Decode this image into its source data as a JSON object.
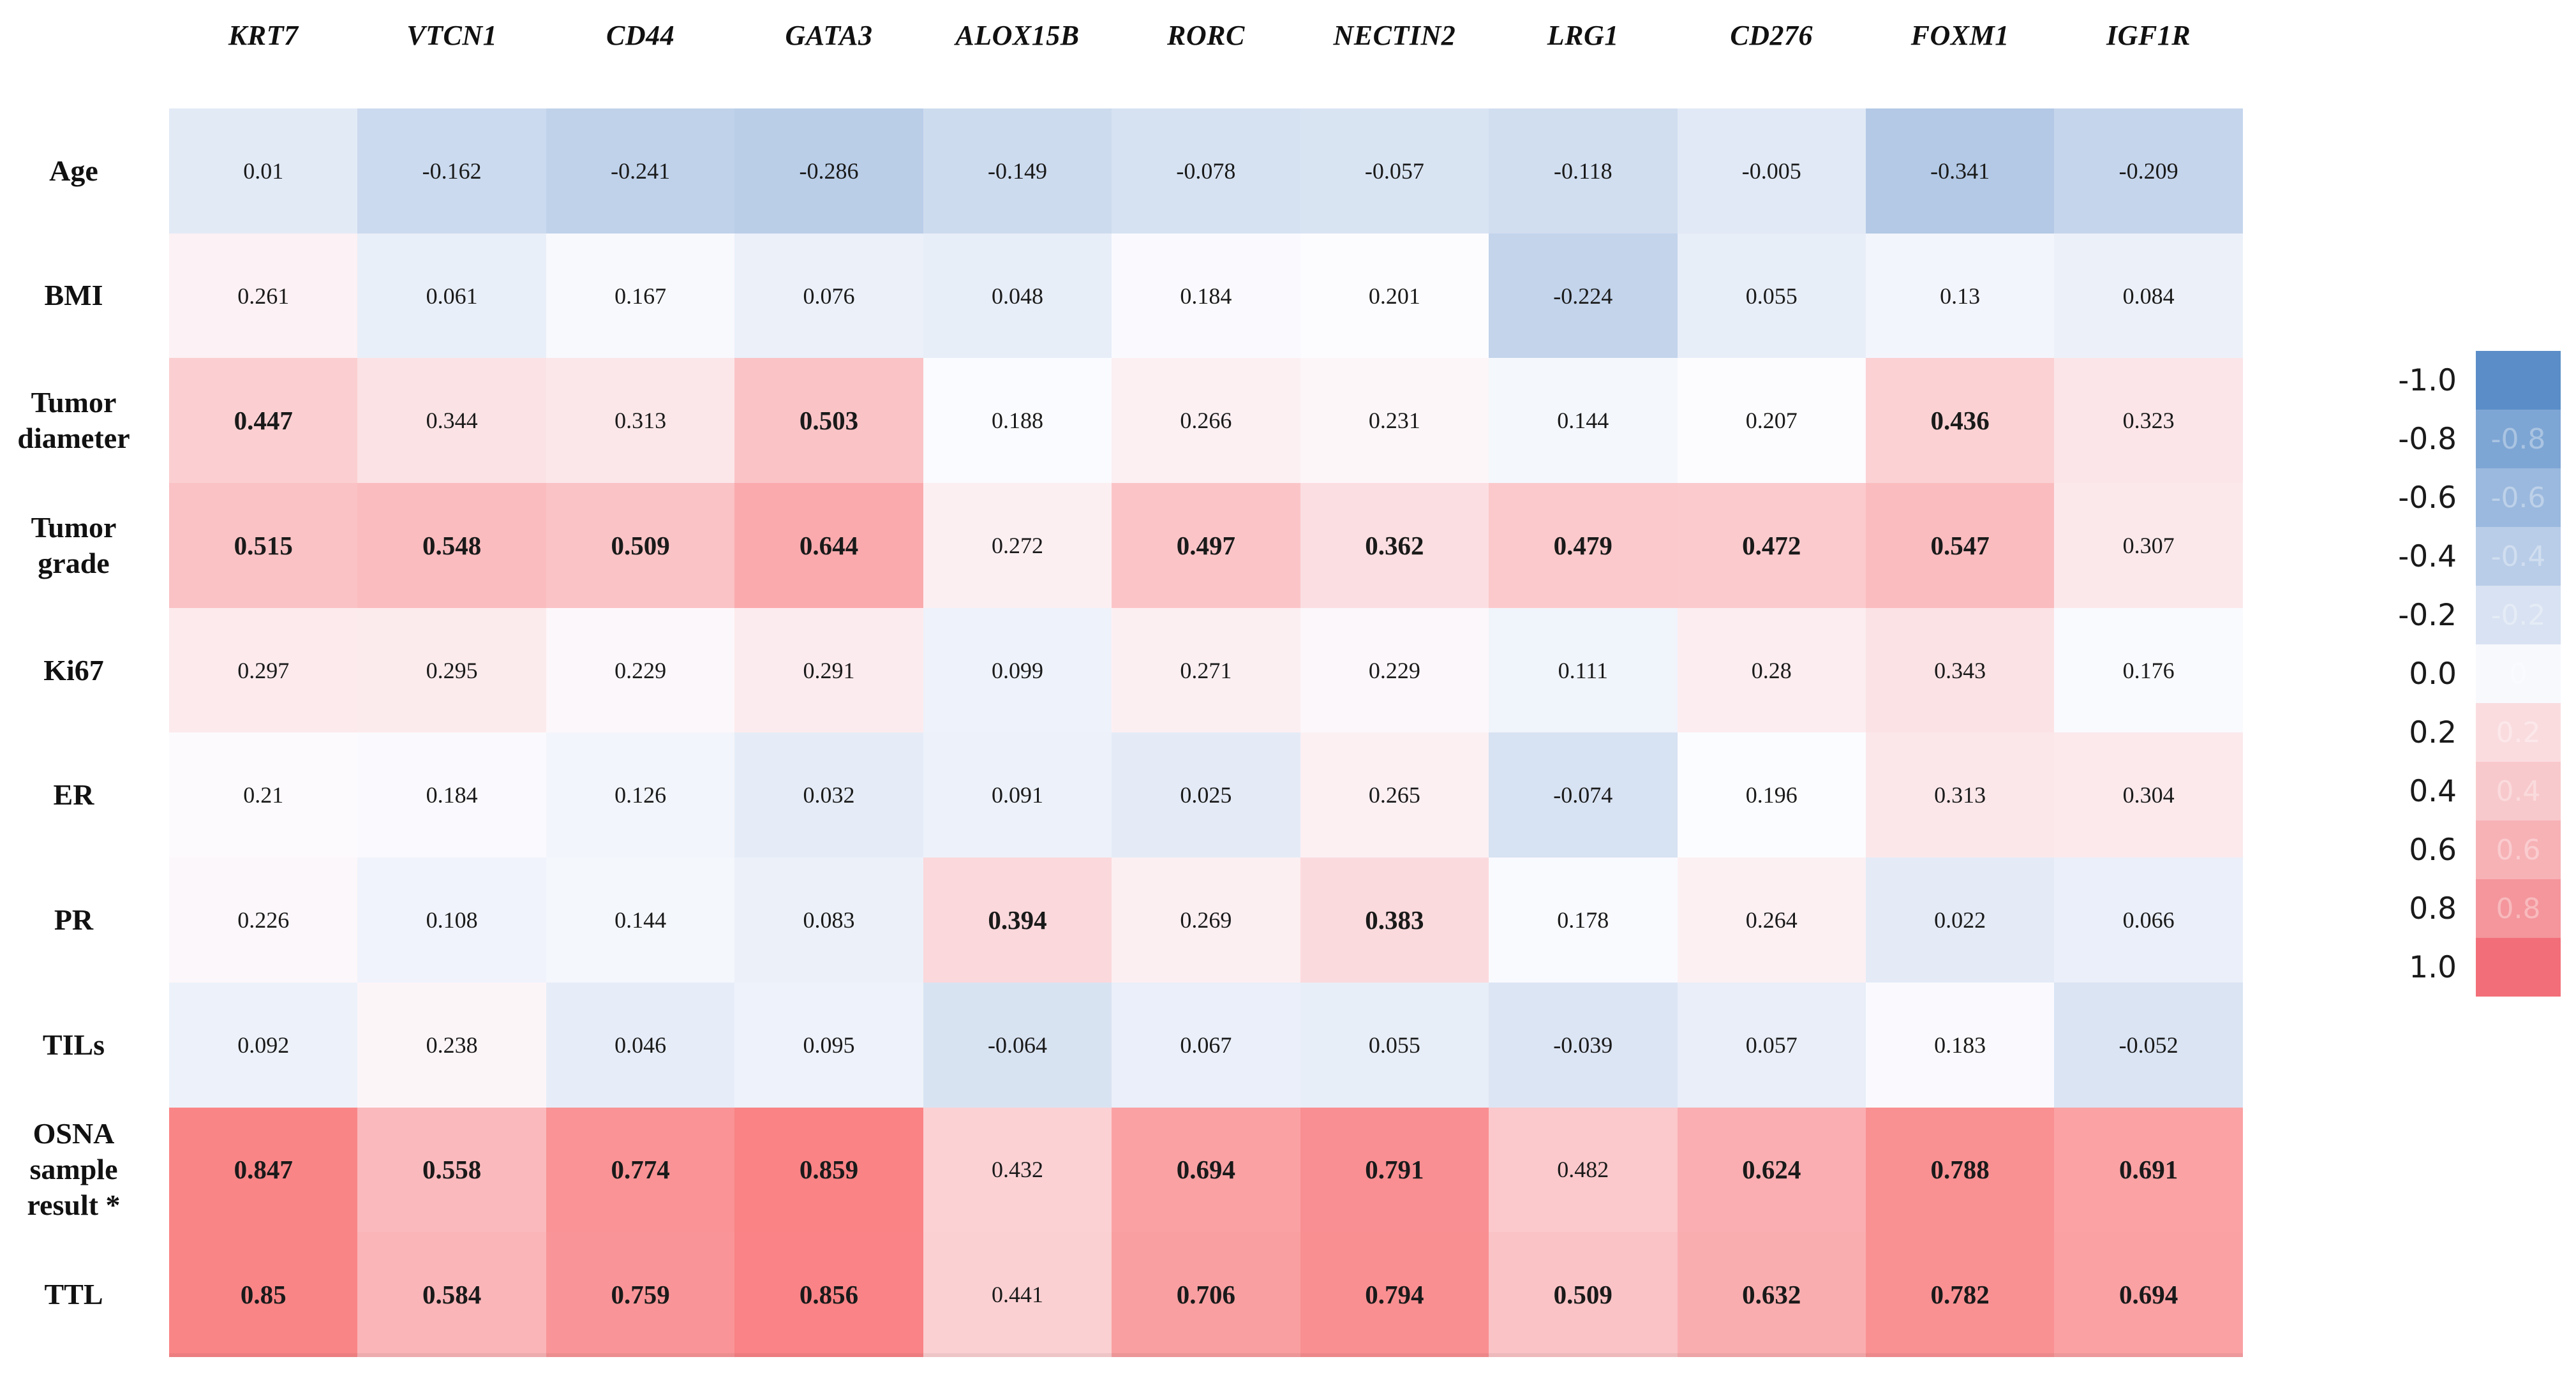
{
  "chart_data": {
    "type": "heatmap",
    "title": "",
    "columns": [
      "KRT7",
      "VTCN1",
      "CD44",
      "GATA3",
      "ALOX15B",
      "RORC",
      "NECTIN2",
      "LRG1",
      "CD276",
      "FOXM1",
      "IGF1R"
    ],
    "rows": [
      {
        "label": "Age",
        "label_lines": [
          "Age"
        ],
        "values": [
          0.01,
          -0.162,
          -0.241,
          -0.286,
          -0.149,
          -0.078,
          -0.057,
          -0.118,
          -0.005,
          -0.341,
          -0.209
        ],
        "bold": [
          0,
          0,
          0,
          0,
          0,
          0,
          0,
          0,
          0,
          0,
          0
        ]
      },
      {
        "label": "BMI",
        "label_lines": [
          "BMI"
        ],
        "values": [
          0.261,
          0.061,
          0.167,
          0.076,
          0.048,
          0.184,
          0.201,
          -0.224,
          0.055,
          0.13,
          0.084
        ],
        "bold": [
          0,
          0,
          0,
          0,
          0,
          0,
          0,
          0,
          0,
          0,
          0
        ]
      },
      {
        "label": "Tumor diameter",
        "label_lines": [
          "Tumor",
          "diameter"
        ],
        "values": [
          0.447,
          0.344,
          0.313,
          0.503,
          0.188,
          0.266,
          0.231,
          0.144,
          0.207,
          0.436,
          0.323
        ],
        "bold": [
          1,
          0,
          0,
          1,
          0,
          0,
          0,
          0,
          0,
          1,
          0
        ]
      },
      {
        "label": "Tumor grade",
        "label_lines": [
          "Tumor",
          "grade"
        ],
        "values": [
          0.515,
          0.548,
          0.509,
          0.644,
          0.272,
          0.497,
          0.362,
          0.479,
          0.472,
          0.547,
          0.307
        ],
        "bold": [
          1,
          1,
          1,
          1,
          0,
          1,
          1,
          1,
          1,
          1,
          0
        ]
      },
      {
        "label": "Ki67",
        "label_lines": [
          "Ki67"
        ],
        "values": [
          0.297,
          0.295,
          0.229,
          0.291,
          0.099,
          0.271,
          0.229,
          0.111,
          0.28,
          0.343,
          0.176
        ],
        "bold": [
          0,
          0,
          0,
          0,
          0,
          0,
          0,
          0,
          0,
          0,
          0
        ]
      },
      {
        "label": "ER",
        "label_lines": [
          "ER"
        ],
        "values": [
          0.21,
          0.184,
          0.126,
          0.032,
          0.091,
          0.025,
          0.265,
          -0.074,
          0.196,
          0.313,
          0.304
        ],
        "bold": [
          0,
          0,
          0,
          0,
          0,
          0,
          0,
          0,
          0,
          0,
          0
        ]
      },
      {
        "label": "PR",
        "label_lines": [
          "PR"
        ],
        "values": [
          0.226,
          0.108,
          0.144,
          0.083,
          0.394,
          0.269,
          0.383,
          0.178,
          0.264,
          0.022,
          0.066
        ],
        "bold": [
          0,
          0,
          0,
          0,
          1,
          0,
          1,
          0,
          0,
          0,
          0
        ]
      },
      {
        "label": "TILs",
        "label_lines": [
          "TILs"
        ],
        "values": [
          0.092,
          0.238,
          0.046,
          0.095,
          -0.064,
          0.067,
          0.055,
          -0.039,
          0.057,
          0.183,
          -0.052
        ],
        "bold": [
          0,
          0,
          0,
          0,
          0,
          0,
          0,
          0,
          0,
          0,
          0
        ]
      },
      {
        "label": "OSNA sample result *",
        "label_lines": [
          "OSNA",
          "sample",
          "result *"
        ],
        "values": [
          0.847,
          0.558,
          0.774,
          0.859,
          0.432,
          0.694,
          0.791,
          0.482,
          0.624,
          0.788,
          0.691
        ],
        "bold": [
          1,
          1,
          1,
          1,
          0,
          1,
          1,
          0,
          1,
          1,
          1
        ]
      },
      {
        "label": "TTL",
        "label_lines": [
          "TTL"
        ],
        "values": [
          0.85,
          0.584,
          0.759,
          0.856,
          0.441,
          0.706,
          0.794,
          0.509,
          0.632,
          0.782,
          0.694
        ],
        "bold": [
          1,
          1,
          1,
          1,
          0,
          1,
          1,
          1,
          1,
          1,
          1
        ]
      }
    ],
    "colorscale": {
      "type": "diverging",
      "negative_color": "#5A8AC6",
      "midpoint_color": "#FCFCFF",
      "positive_color": "#F8696B",
      "domain_min": -1.0,
      "white_point": 0.2,
      "domain_max": 1.0
    },
    "legend": {
      "position": "right",
      "stops": [
        {
          "label": "-1.0",
          "color": "#5b8ec8",
          "ghost": ""
        },
        {
          "label": "-0.8",
          "color": "#7ea6d4",
          "ghost": "-0.8"
        },
        {
          "label": "-0.6",
          "color": "#9bb9de",
          "ghost": "-0.6"
        },
        {
          "label": "-0.4",
          "color": "#b9cde8",
          "ghost": "-0.4"
        },
        {
          "label": "-0.2",
          "color": "#d8e2f2",
          "ghost": "-0.2"
        },
        {
          "label": "0.0",
          "color": "#f7f9fd",
          "ghost": "0"
        },
        {
          "label": "0.2",
          "color": "#fadcdf",
          "ghost": "0.2"
        },
        {
          "label": "0.4",
          "color": "#f8c9cc",
          "ghost": "0.4"
        },
        {
          "label": "0.6",
          "color": "#f7b2b6",
          "ghost": "0.6"
        },
        {
          "label": "0.8",
          "color": "#f4969c",
          "ghost": "0.8"
        },
        {
          "label": "1.0",
          "color": "#f26f79",
          "ghost": ""
        }
      ]
    }
  }
}
